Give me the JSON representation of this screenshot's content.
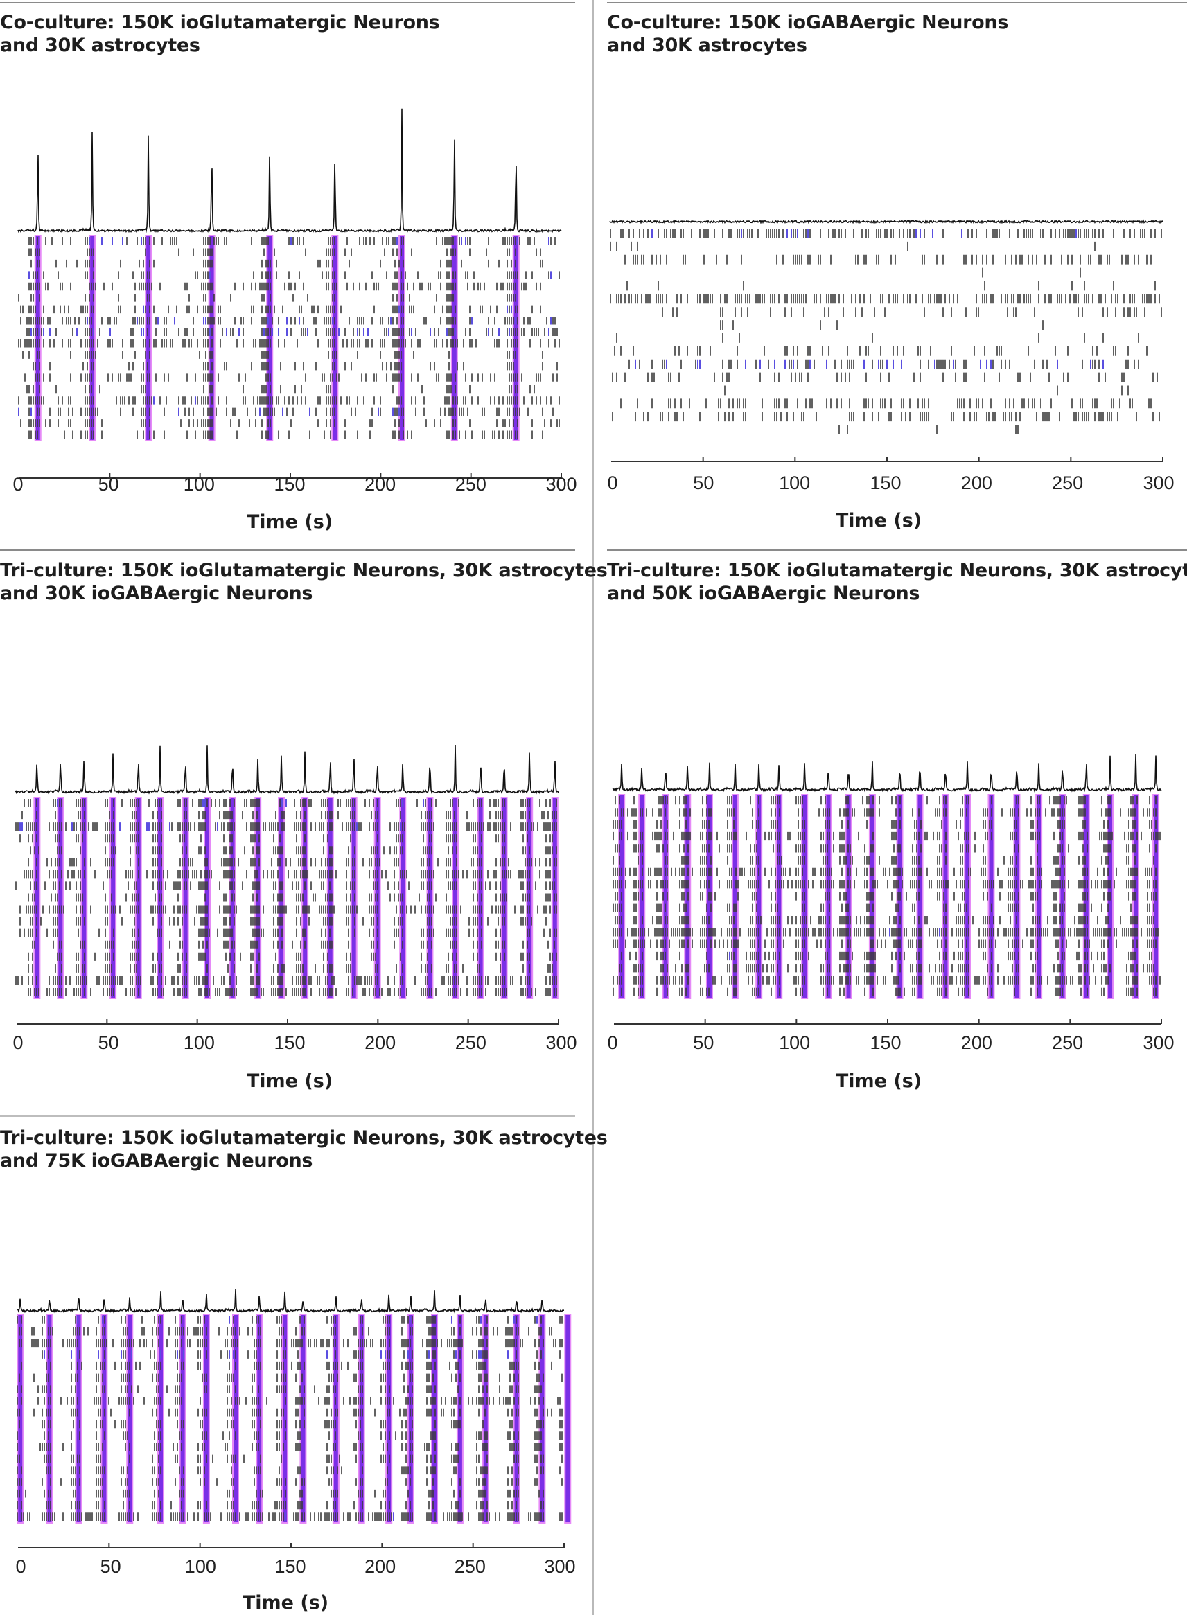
{
  "layout_text": {
    "xlabel": "Time (s)"
  },
  "chart_data": [
    {
      "type": "raster",
      "id": "p1",
      "title_line1": "Co-culture: 150K ioGlutamatergic Neurons",
      "title_line2": "and 30K astrocytes",
      "xlabel": "Time (s)",
      "xlim": [
        0,
        300
      ],
      "xticks": [
        "0",
        "50",
        "100",
        "150",
        "200",
        "250",
        "300"
      ],
      "bursts_s": [
        11,
        41,
        72,
        107,
        139,
        175,
        212,
        241,
        275
      ],
      "peak_heights": [
        0.93,
        0.97,
        0.96,
        0.95,
        0.87,
        0.89,
        1.0,
        1.0,
        0.93
      ],
      "rows": 18,
      "row_density": [
        0.35,
        0.12,
        0.15,
        0.2,
        0.45,
        0.12,
        0.35,
        0.55,
        0.6,
        0.65,
        0.12,
        0.2,
        0.35,
        0.1,
        0.6,
        0.45,
        0.3,
        0.2
      ],
      "row_blue": [
        0.2,
        0,
        0,
        0.05,
        0,
        0,
        0.05,
        0.1,
        0.3,
        0,
        0,
        0.03,
        0,
        0,
        0.02,
        0.05,
        0,
        0
      ],
      "burst_bands": true
    },
    {
      "type": "raster",
      "id": "p2",
      "title_line1": "Co-culture: 150K ioGABAergic Neurons",
      "title_line2": "and 30K astrocytes",
      "xlabel": "Time (s)",
      "xlim": [
        0,
        300
      ],
      "xticks": [
        "0",
        "50",
        "100",
        "150",
        "200",
        "250",
        "300"
      ],
      "bursts_s": [],
      "peak_heights": [],
      "rows": 16,
      "row_density": [
        0.9,
        0.05,
        0.55,
        0.03,
        0.06,
        1.0,
        0.3,
        0.02,
        0.04,
        0.35,
        0.55,
        0.35,
        0.04,
        0.55,
        0.5,
        0.03
      ],
      "row_blue": [
        0.05,
        0,
        0,
        0,
        0,
        0,
        0,
        0,
        0,
        0,
        0.25,
        0,
        0,
        0,
        0,
        0
      ],
      "burst_bands": false
    },
    {
      "type": "raster",
      "id": "p3",
      "title_line1": "Tri-culture: 150K ioGlutamatergic Neurons, 30K astrocytes",
      "title_line2": "and 30K ioGABAergic Neurons",
      "xlabel": "Time (s)",
      "xlim": [
        0,
        300
      ],
      "xticks": [
        "0",
        "50",
        "100",
        "150",
        "200",
        "250",
        "300"
      ],
      "bursts_s": [
        12,
        25,
        38,
        54,
        68,
        80,
        94,
        106,
        120,
        134,
        147,
        160,
        174,
        187,
        200,
        214,
        229,
        243,
        257,
        270,
        284,
        298
      ],
      "peak_heights": [
        0.82,
        0.84,
        0.84,
        0.8,
        0.83,
        0.86,
        0.86,
        0.8,
        0.84,
        0.74,
        0.81,
        0.85,
        0.85,
        1.0,
        0.83,
        0.73,
        0.87,
        0.87,
        0.86,
        0.81,
        0.89,
        0.8
      ],
      "rows": 17,
      "row_density": [
        0.35,
        0.15,
        0.7,
        0.03,
        0.02,
        0.3,
        0.45,
        0.2,
        0.15,
        0.5,
        0.15,
        0.12,
        0.02,
        0.02,
        0.02,
        0.45,
        0.55
      ],
      "row_blue": [
        0.1,
        0,
        0.05,
        0,
        0,
        0,
        0,
        0,
        0,
        0,
        0,
        0,
        0,
        0,
        0,
        0,
        0
      ],
      "burst_bands": true
    },
    {
      "type": "raster",
      "id": "p4",
      "title_line1": "Tri-culture: 150K ioGlutamatergic Neurons, 30K astrocytes",
      "title_line2": "and 50K ioGABAergic Neurons",
      "xlabel": "Time (s)",
      "xlim": [
        0,
        300
      ],
      "xticks": [
        "0",
        "50",
        "100",
        "150",
        "200",
        "250",
        "300"
      ],
      "bursts_s": [
        5,
        16,
        29,
        41,
        53,
        67,
        80,
        91,
        105,
        118,
        129,
        142,
        157,
        168,
        182,
        194,
        207,
        221,
        233,
        246,
        259,
        272,
        286,
        297
      ],
      "peak_heights": [
        0.88,
        0.82,
        0.9,
        0.92,
        0.78,
        0.82,
        0.89,
        0.89,
        0.95,
        0.93,
        0.91,
        0.88,
        0.94,
        1.0,
        0.9,
        0.92,
        0.87,
        0.92,
        0.84,
        0.93,
        0.97,
        0.98,
        0.96,
        0.97
      ],
      "rows": 17,
      "row_density": [
        0.08,
        0.25,
        0.03,
        0.3,
        0.04,
        0.04,
        0.35,
        0.55,
        0.05,
        0.03,
        0.25,
        0.8,
        0.3,
        0.2,
        0.25,
        0.4,
        0.02
      ],
      "row_blue": [
        0,
        0,
        0,
        0,
        0,
        0,
        0,
        0,
        0,
        0,
        0,
        0.02,
        0,
        0.02,
        0,
        0,
        0
      ],
      "burst_bands": true
    },
    {
      "type": "raster",
      "id": "p5",
      "title_line1": "Tri-culture: 150K ioGlutamatergic Neurons, 30K astrocytes",
      "title_line2": "and 75K ioGABAergic Neurons",
      "xlabel": "Time (s)",
      "xlim": [
        0,
        300
      ],
      "xticks": [
        "0",
        "50",
        "100",
        "150",
        "200",
        "250",
        "300"
      ],
      "bursts_s": [
        2,
        18,
        34,
        48,
        62,
        79,
        91,
        104,
        120,
        133,
        147,
        157,
        175,
        189,
        204,
        216,
        229,
        243,
        257,
        274,
        288,
        302
      ],
      "peak_heights": [
        0.6,
        0.67,
        1.0,
        0.75,
        0.68,
        0.75,
        0.75,
        0.76,
        0.78,
        0.76,
        0.79,
        0.7,
        0.66,
        0.66,
        0.76,
        0.76,
        0.78,
        0.7,
        0.65,
        0.72,
        0.73,
        0.72
      ],
      "rows": 18,
      "row_density": [
        0.04,
        0.2,
        0.45,
        0.05,
        0.2,
        0.03,
        0.1,
        0.35,
        0.15,
        0.05,
        0.02,
        0.02,
        0.02,
        0.02,
        0.03,
        0.03,
        0.02,
        0.65
      ],
      "row_blue": [
        0.15,
        0,
        0,
        0.3,
        0,
        0,
        0,
        0,
        0,
        0,
        0,
        0,
        0,
        0,
        0,
        0,
        0,
        0.02
      ],
      "burst_bands": true
    }
  ],
  "colors": {
    "spike": "#3a3a3a",
    "spike_blue": "#5a4fe0",
    "burst_fill": "#7b2fe6",
    "burst_outline": "#e58af7",
    "trace": "#111111",
    "axis": "#333333"
  }
}
